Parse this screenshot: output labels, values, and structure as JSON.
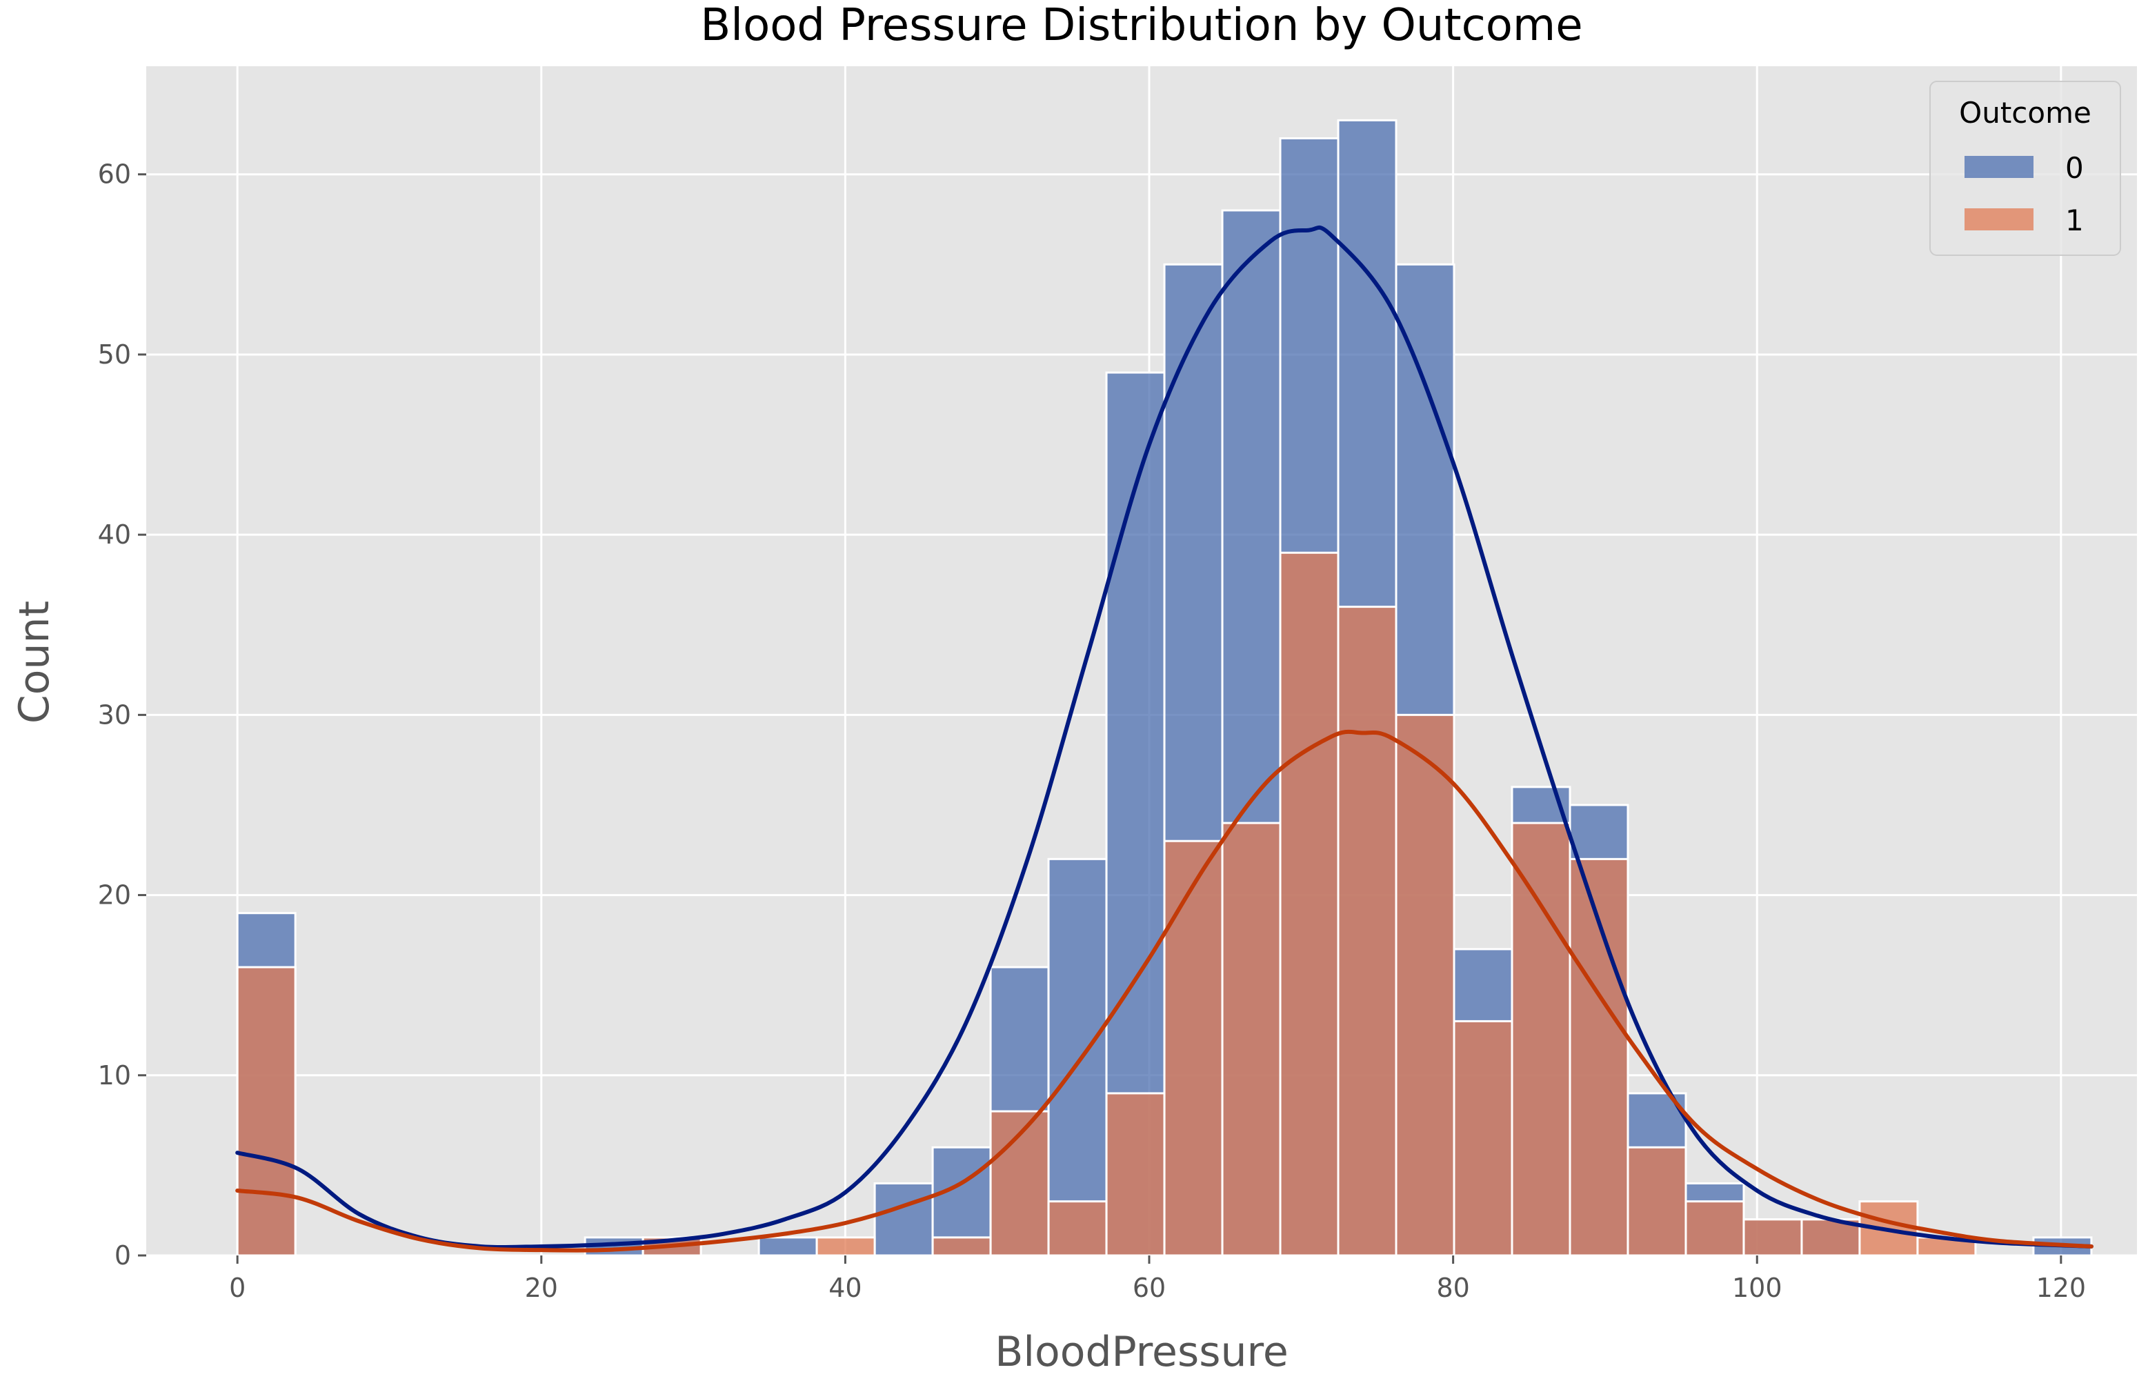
{
  "chart_data": {
    "type": "histogram",
    "title": "Blood Pressure Distribution by Outcome",
    "xlabel": "BloodPressure",
    "ylabel": "Count",
    "xlim": [
      -6,
      125
    ],
    "ylim": [
      0,
      66
    ],
    "xticks": [
      0,
      20,
      40,
      60,
      80,
      100,
      120
    ],
    "yticks": [
      0,
      10,
      20,
      30,
      40,
      50,
      60
    ],
    "grid": true,
    "legend": {
      "title": "Outcome",
      "position": "top-right",
      "entries": [
        "0",
        "1"
      ]
    },
    "bin_edges": [
      0,
      3.8125,
      7.625,
      11.4375,
      15.25,
      19.0625,
      22.875,
      26.6875,
      30.5,
      34.3125,
      38.125,
      41.9375,
      45.75,
      49.5625,
      53.375,
      57.1875,
      61,
      64.8125,
      68.625,
      72.4375,
      76.25,
      80.0625,
      83.875,
      87.6875,
      91.5,
      95.3125,
      99.125,
      102.9375,
      106.75,
      110.5625,
      114.375,
      118.1875,
      122
    ],
    "series": [
      {
        "name": "0",
        "color": "#4c6fb0",
        "counts": [
          19,
          0,
          0,
          0,
          0,
          0,
          1,
          1,
          0,
          1,
          0,
          4,
          6,
          16,
          22,
          49,
          55,
          58,
          62,
          63,
          55,
          17,
          26,
          25,
          9,
          4,
          2,
          2,
          0,
          0,
          0,
          1
        ]
      },
      {
        "name": "1",
        "color": "#e07b54",
        "counts": [
          16,
          0,
          0,
          0,
          0,
          0,
          0,
          1,
          0,
          0,
          1,
          0,
          1,
          8,
          3,
          9,
          23,
          24,
          39,
          36,
          30,
          13,
          24,
          22,
          6,
          3,
          2,
          2,
          3,
          1,
          0,
          0
        ]
      }
    ],
    "kde": [
      {
        "name": "0",
        "color": "#001a80",
        "x": [
          0,
          4,
          8,
          12,
          16,
          20,
          24,
          28,
          32,
          36,
          40,
          44,
          48,
          52,
          56,
          60,
          64,
          68,
          70.5,
          72,
          76,
          80,
          84,
          88,
          92,
          96,
          100,
          104,
          108,
          112,
          116,
          122
        ],
        "y": [
          5.7,
          4.8,
          2.3,
          1.0,
          0.5,
          0.5,
          0.6,
          0.8,
          1.2,
          2.0,
          3.5,
          7.2,
          13,
          22,
          33.5,
          45,
          52.5,
          56.3,
          56.9,
          56.6,
          52.5,
          44,
          33,
          22.5,
          13,
          6.7,
          3.6,
          2.2,
          1.5,
          1.0,
          0.7,
          0.5
        ]
      },
      {
        "name": "1",
        "color": "#c23a08",
        "x": [
          0,
          4,
          8,
          12,
          16,
          20,
          24,
          28,
          32,
          36,
          40,
          44,
          48,
          52,
          56,
          60,
          64,
          68,
          72,
          74,
          76,
          80,
          84,
          88,
          92,
          96,
          100,
          104,
          108,
          112,
          116,
          122
        ],
        "y": [
          3.6,
          3.2,
          1.9,
          0.9,
          0.4,
          0.3,
          0.3,
          0.5,
          0.8,
          1.2,
          1.8,
          2.8,
          4.2,
          7.2,
          11.5,
          16.5,
          22,
          26.5,
          28.8,
          29,
          28.7,
          26.2,
          21.7,
          16.5,
          11.5,
          7.2,
          4.8,
          3.1,
          2.0,
          1.3,
          0.8,
          0.5
        ]
      }
    ]
  }
}
